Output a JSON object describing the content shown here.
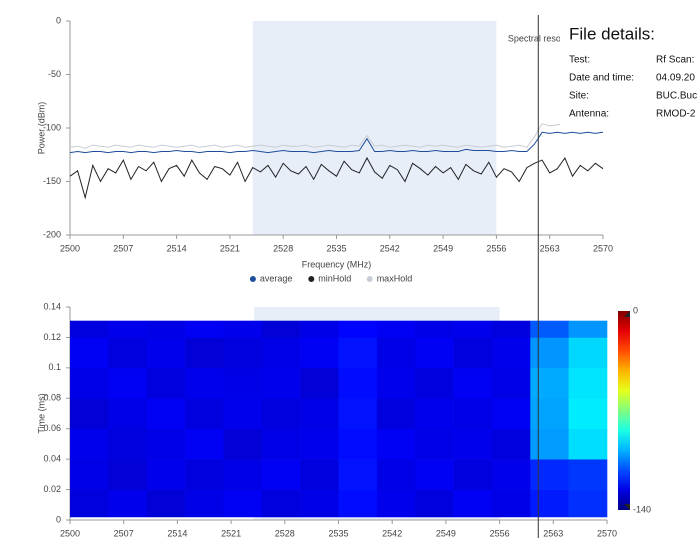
{
  "chart_data": [
    {
      "type": "line",
      "annotation": "Spectral resolution",
      "xlabel": "Frequency (MHz)",
      "ylabel": "Power (dBm)",
      "x": [
        2500,
        2501,
        2502,
        2503,
        2504,
        2505,
        2506,
        2507,
        2508,
        2509,
        2510,
        2511,
        2512,
        2513,
        2514,
        2515,
        2516,
        2517,
        2518,
        2519,
        2520,
        2521,
        2522,
        2523,
        2524,
        2525,
        2526,
        2527,
        2528,
        2529,
        2530,
        2531,
        2532,
        2533,
        2534,
        2535,
        2536,
        2537,
        2538,
        2539,
        2540,
        2541,
        2542,
        2543,
        2544,
        2545,
        2546,
        2547,
        2548,
        2549,
        2550,
        2551,
        2552,
        2553,
        2554,
        2555,
        2556,
        2557,
        2558,
        2559,
        2560,
        2561,
        2562,
        2563,
        2564,
        2565,
        2566,
        2567,
        2568,
        2569,
        2570
      ],
      "series": [
        {
          "name": "average",
          "color": "#1f4e9c",
          "values": [
            -123,
            -122,
            -123,
            -122,
            -122,
            -123,
            -122,
            -122,
            -123,
            -122,
            -122,
            -123,
            -122,
            -122,
            -121,
            -122,
            -122,
            -123,
            -122,
            -122,
            -122,
            -123,
            -122,
            -122,
            -121,
            -122,
            -123,
            -122,
            -121,
            -122,
            -122,
            -122,
            -123,
            -122,
            -121,
            -122,
            -122,
            -122,
            -121,
            -110,
            -122,
            -122,
            -121,
            -122,
            -122,
            -121,
            -122,
            -122,
            -121,
            -122,
            -122,
            -122,
            -120,
            -121,
            -121,
            -121,
            -122,
            -122,
            -121,
            -122,
            -122,
            -115,
            -104,
            -105,
            -104,
            -105,
            -104,
            -105,
            -104,
            -105,
            -104
          ]
        },
        {
          "name": "minHold",
          "color": "#222222",
          "values": [
            -145,
            -140,
            -165,
            -135,
            -150,
            -138,
            -142,
            -130,
            -148,
            -136,
            -140,
            -132,
            -150,
            -138,
            -135,
            -145,
            -130,
            -142,
            -148,
            -136,
            -138,
            -144,
            -132,
            -150,
            -137,
            -141,
            -135,
            -146,
            -133,
            -140,
            -143,
            -136,
            -148,
            -134,
            -140,
            -145,
            -131,
            -139,
            -142,
            -128,
            -141,
            -147,
            -135,
            -139,
            -150,
            -133,
            -138,
            -144,
            -136,
            -142,
            -137,
            -148,
            -134,
            -140,
            -143,
            -132,
            -146,
            -138,
            -141,
            -150,
            -137,
            -133,
            -130,
            -142,
            -138,
            -128,
            -145,
            -135,
            -140,
            -133,
            -138
          ]
        },
        {
          "name": "maxHold",
          "color": "#c8ccd4",
          "values": [
            -118,
            -117,
            -119,
            -116,
            -117,
            -118,
            -116,
            -117,
            -118,
            -116,
            -117,
            -118,
            -116,
            -117,
            -118,
            -117,
            -116,
            -118,
            -117,
            -116,
            -118,
            -117,
            -116,
            -118,
            -117,
            -116,
            -117,
            -118,
            -116,
            -117,
            -117,
            -116,
            -118,
            -117,
            -116,
            -117,
            -118,
            -116,
            -117,
            -107,
            -117,
            -116,
            -118,
            -117,
            -116,
            -117,
            -118,
            -116,
            -117,
            -116,
            -117,
            -118,
            -116,
            -117,
            -118,
            -117,
            -116,
            -118,
            -117,
            -116,
            -118,
            -108,
            -96,
            -98,
            -97,
            -96,
            -99,
            -97,
            -98,
            -96,
            -97
          ]
        }
      ],
      "xlim": [
        2500,
        2570
      ],
      "xticks": [
        2500,
        2507,
        2514,
        2521,
        2528,
        2535,
        2542,
        2549,
        2556,
        2563,
        2570
      ],
      "ylim": [
        -200,
        0
      ],
      "yticks": [
        0,
        -50,
        -100,
        -150,
        -200
      ],
      "highlight": [
        2524,
        2556
      ],
      "cursor": 2561.5,
      "legend": "bottom"
    },
    {
      "type": "heatmap",
      "ylabel": "Time (ms)",
      "x_bins": [
        2500,
        2505,
        2510,
        2515,
        2520,
        2525,
        2530,
        2535,
        2540,
        2545,
        2550,
        2555,
        2560,
        2565,
        2570
      ],
      "y_bins": [
        0.002,
        0.02,
        0.04,
        0.06,
        0.08,
        0.1,
        0.12,
        0.131
      ],
      "z": [
        [
          -127,
          -125,
          -128,
          -126,
          -124,
          -127,
          -126,
          -121,
          -125,
          -127,
          -124,
          -126,
          -119,
          -116
        ],
        [
          -126,
          -128,
          -125,
          -127,
          -126,
          -124,
          -127,
          -120,
          -126,
          -124,
          -127,
          -125,
          -117,
          -115
        ],
        [
          -125,
          -127,
          -126,
          -124,
          -128,
          -126,
          -125,
          -121,
          -124,
          -126,
          -125,
          -127,
          -101,
          -92
        ],
        [
          -128,
          -126,
          -124,
          -127,
          -125,
          -127,
          -126,
          -120,
          -127,
          -125,
          -126,
          -124,
          -100,
          -90
        ],
        [
          -126,
          -124,
          -127,
          -125,
          -126,
          -125,
          -128,
          -121,
          -125,
          -127,
          -124,
          -126,
          -99,
          -91
        ],
        [
          -124,
          -127,
          -125,
          -128,
          -127,
          -126,
          -124,
          -120,
          -126,
          -124,
          -127,
          -125,
          -102,
          -93
        ],
        [
          -127,
          -125,
          -126,
          -124,
          -125,
          -128,
          -126,
          -122,
          -124,
          -126,
          -125,
          -127,
          -110,
          -102
        ]
      ],
      "xlim": [
        2500,
        2570
      ],
      "xticks": [
        2500,
        2507,
        2514,
        2521,
        2528,
        2535,
        2542,
        2549,
        2556,
        2563,
        2570
      ],
      "ylim": [
        0,
        0.14
      ],
      "yticks": [
        0,
        0.02,
        0.04,
        0.06,
        0.08,
        0.1,
        0.12,
        0.14
      ],
      "zlim": [
        -140,
        0
      ],
      "colorbar_ticks": [
        0,
        -140
      ],
      "highlight": [
        2524,
        2556
      ],
      "colormap": "jet"
    }
  ],
  "file_details": {
    "title": "File details:",
    "rows": [
      [
        "Test:",
        "Rf Scan:"
      ],
      [
        "Date and time:",
        "04.09.20"
      ],
      [
        "Site:",
        "BUC.Buc"
      ],
      [
        "Antenna:",
        "RMOD-2"
      ]
    ]
  }
}
